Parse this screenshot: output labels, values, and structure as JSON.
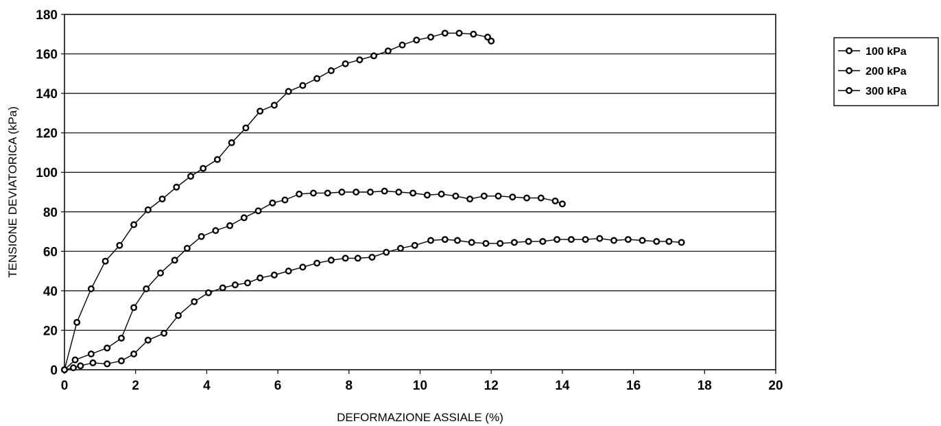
{
  "chart_data": {
    "type": "line",
    "title": "",
    "xlabel": "DEFORMAZIONE ASSIALE (%)",
    "ylabel": "TENSIONE DEVIATORICA (kPa)",
    "xlim": [
      0,
      20
    ],
    "ylim": [
      0,
      180
    ],
    "x_ticks": [
      "0",
      "2",
      "4",
      "6",
      "8",
      "10",
      "12",
      "14",
      "16",
      "18",
      "20"
    ],
    "y_ticks": [
      "0",
      "20",
      "40",
      "60",
      "80",
      "100",
      "120",
      "140",
      "160",
      "180"
    ],
    "grid": "horizontal",
    "legend_position": "right",
    "series": [
      {
        "name": "100 kPa",
        "points": [
          [
            0,
            0
          ],
          [
            0.25,
            1
          ],
          [
            0.45,
            2
          ],
          [
            0.8,
            3.5
          ],
          [
            1.2,
            3
          ],
          [
            1.6,
            4.5
          ],
          [
            1.95,
            8
          ],
          [
            2.35,
            15
          ],
          [
            2.8,
            18.5
          ],
          [
            3.2,
            27.5
          ],
          [
            3.65,
            34.5
          ],
          [
            4.05,
            39
          ],
          [
            4.45,
            41.5
          ],
          [
            4.8,
            43
          ],
          [
            5.15,
            44
          ],
          [
            5.5,
            46.5
          ],
          [
            5.9,
            48
          ],
          [
            6.3,
            50
          ],
          [
            6.7,
            52
          ],
          [
            7.1,
            54
          ],
          [
            7.5,
            55.5
          ],
          [
            7.9,
            56.5
          ],
          [
            8.25,
            56.5
          ],
          [
            8.65,
            57
          ],
          [
            9.05,
            59.5
          ],
          [
            9.45,
            61.5
          ],
          [
            9.85,
            63
          ],
          [
            10.3,
            65.5
          ],
          [
            10.7,
            66
          ],
          [
            11.05,
            65.5
          ],
          [
            11.45,
            64.5
          ],
          [
            11.85,
            64
          ],
          [
            12.25,
            64
          ],
          [
            12.65,
            64.5
          ],
          [
            13.05,
            65
          ],
          [
            13.45,
            65
          ],
          [
            13.85,
            66
          ],
          [
            14.25,
            66
          ],
          [
            14.65,
            66
          ],
          [
            15.05,
            66.5
          ],
          [
            15.45,
            65.5
          ],
          [
            15.85,
            66
          ],
          [
            16.25,
            65.5
          ],
          [
            16.65,
            65
          ],
          [
            17.0,
            65
          ],
          [
            17.35,
            64.5
          ]
        ]
      },
      {
        "name": "200 kPa",
        "points": [
          [
            0,
            0
          ],
          [
            0.3,
            5
          ],
          [
            0.75,
            8
          ],
          [
            1.2,
            11
          ],
          [
            1.6,
            16
          ],
          [
            1.95,
            31.5
          ],
          [
            2.3,
            41
          ],
          [
            2.7,
            49
          ],
          [
            3.1,
            55.5
          ],
          [
            3.45,
            61.5
          ],
          [
            3.85,
            67.5
          ],
          [
            4.25,
            70.5
          ],
          [
            4.65,
            73
          ],
          [
            5.05,
            77
          ],
          [
            5.45,
            80.5
          ],
          [
            5.85,
            84.5
          ],
          [
            6.2,
            86
          ],
          [
            6.6,
            89
          ],
          [
            7.0,
            89.5
          ],
          [
            7.4,
            89.5
          ],
          [
            7.8,
            90
          ],
          [
            8.2,
            90
          ],
          [
            8.6,
            90
          ],
          [
            9.0,
            90.5
          ],
          [
            9.4,
            90
          ],
          [
            9.8,
            89.5
          ],
          [
            10.2,
            88.5
          ],
          [
            10.6,
            89
          ],
          [
            11.0,
            88
          ],
          [
            11.4,
            86.5
          ],
          [
            11.8,
            88
          ],
          [
            12.2,
            88
          ],
          [
            12.6,
            87.5
          ],
          [
            13.0,
            87
          ],
          [
            13.4,
            87
          ],
          [
            13.8,
            85.5
          ],
          [
            14.0,
            84
          ]
        ]
      },
      {
        "name": "300 kPa",
        "points": [
          [
            0,
            0
          ],
          [
            0.35,
            24
          ],
          [
            0.75,
            41
          ],
          [
            1.15,
            55
          ],
          [
            1.55,
            63
          ],
          [
            1.95,
            73.5
          ],
          [
            2.35,
            81
          ],
          [
            2.75,
            86.5
          ],
          [
            3.15,
            92.5
          ],
          [
            3.55,
            98
          ],
          [
            3.9,
            102
          ],
          [
            4.3,
            106.5
          ],
          [
            4.7,
            115
          ],
          [
            5.1,
            122.5
          ],
          [
            5.5,
            131
          ],
          [
            5.9,
            134
          ],
          [
            6.3,
            141
          ],
          [
            6.7,
            144
          ],
          [
            7.1,
            147.5
          ],
          [
            7.5,
            151.5
          ],
          [
            7.9,
            155
          ],
          [
            8.3,
            157
          ],
          [
            8.7,
            159
          ],
          [
            9.1,
            161.5
          ],
          [
            9.5,
            164.5
          ],
          [
            9.9,
            167
          ],
          [
            10.3,
            168.5
          ],
          [
            10.7,
            170.5
          ],
          [
            11.1,
            170.5
          ],
          [
            11.5,
            170
          ],
          [
            11.9,
            168.5
          ],
          [
            12.0,
            166.5
          ]
        ]
      }
    ]
  }
}
